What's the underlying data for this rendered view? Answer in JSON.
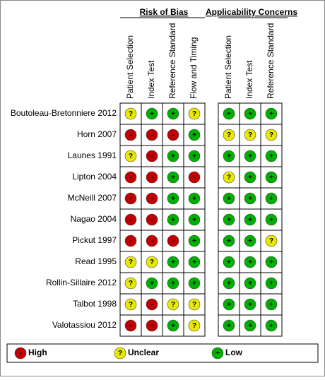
{
  "groups": [
    {
      "title": "Risk of Bias",
      "columns": [
        "Patient Selection",
        "Index Test",
        "Reference Standard",
        "Flow and Timing"
      ]
    },
    {
      "title": "Applicability Concerns",
      "columns": [
        "Patient Selection",
        "Index Test",
        "Reference Standard"
      ]
    }
  ],
  "rows": [
    {
      "label": "Boutoleau-Bretonniere 2012",
      "ratings": [
        [
          "?",
          "+",
          "+",
          "?"
        ],
        [
          "+",
          "+",
          "+"
        ]
      ]
    },
    {
      "label": "Horn 2007",
      "ratings": [
        [
          "-",
          "-",
          "-",
          "+"
        ],
        [
          "?",
          "?",
          "?"
        ]
      ]
    },
    {
      "label": "Launes 1991",
      "ratings": [
        [
          "?",
          "-",
          "+",
          "+"
        ],
        [
          "+",
          "+",
          "+"
        ]
      ]
    },
    {
      "label": "Lipton 2004",
      "ratings": [
        [
          "-",
          "-",
          "+",
          "-"
        ],
        [
          "?",
          "+",
          "+"
        ]
      ]
    },
    {
      "label": "McNeill 2007",
      "ratings": [
        [
          "-",
          "-",
          "+",
          "+"
        ],
        [
          "+",
          "+",
          "+"
        ]
      ]
    },
    {
      "label": "Nagao 2004",
      "ratings": [
        [
          "-",
          "-",
          "+",
          "+"
        ],
        [
          "+",
          "+",
          "+"
        ]
      ]
    },
    {
      "label": "Pickut 1997",
      "ratings": [
        [
          "-",
          "-",
          "-",
          "+"
        ],
        [
          "+",
          "+",
          "?"
        ]
      ]
    },
    {
      "label": "Read 1995",
      "ratings": [
        [
          "?",
          "?",
          "+",
          "+"
        ],
        [
          "+",
          "+",
          "+"
        ]
      ]
    },
    {
      "label": "Rollin-Sillaire 2012",
      "ratings": [
        [
          "?",
          "+",
          "+",
          "+"
        ],
        [
          "+",
          "+",
          "+"
        ]
      ]
    },
    {
      "label": "Talbot 1998",
      "ratings": [
        [
          "?",
          "-",
          "?",
          "?"
        ],
        [
          "+",
          "+",
          "+"
        ]
      ]
    },
    {
      "label": "Valotassiou 2012",
      "ratings": [
        [
          "-",
          "-",
          "+",
          "?"
        ],
        [
          "+",
          "+",
          "+"
        ]
      ]
    }
  ],
  "legend": [
    {
      "symbol": "-",
      "label": "High",
      "color": "#c00000"
    },
    {
      "symbol": "?",
      "label": "Unclear",
      "color": "#e8e800"
    },
    {
      "symbol": "+",
      "label": "Low",
      "color": "#00b000"
    }
  ]
}
